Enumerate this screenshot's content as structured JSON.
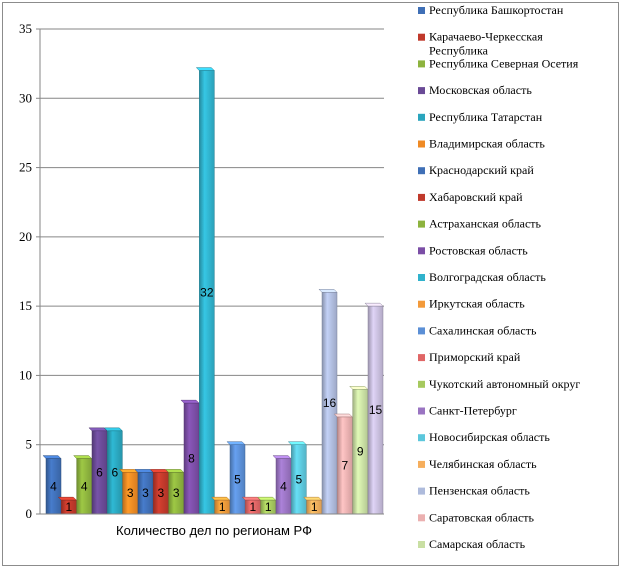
{
  "chart_data": {
    "type": "bar",
    "xlabel": "Количество дел по регионам РФ",
    "categories": [
      "Количество дел по регионам РФ"
    ],
    "ylim": [
      0,
      35
    ],
    "yticks": [
      0,
      5,
      10,
      15,
      20,
      25,
      30,
      35
    ],
    "grid": true,
    "legend_position": "right",
    "series": [
      {
        "name": "Республика Башкортостан",
        "values": [
          4
        ],
        "color": "#3f6fb6"
      },
      {
        "name": "Карачаево-Черкесская Республика",
        "values": [
          1
        ],
        "color": "#c0392b"
      },
      {
        "name": "Республика Северная Осетия",
        "values": [
          4
        ],
        "color": "#8db33e"
      },
      {
        "name": "Московская область",
        "values": [
          6
        ],
        "color": "#6a4a96"
      },
      {
        "name": "Республика Татарстан",
        "values": [
          6
        ],
        "color": "#2aa5bd"
      },
      {
        "name": "Владимирская область",
        "values": [
          3
        ],
        "color": "#ef8a24"
      },
      {
        "name": "Краснодарский край",
        "values": [
          3
        ],
        "color": "#3f6fb6"
      },
      {
        "name": "Хабаровский край",
        "values": [
          3
        ],
        "color": "#c0392b"
      },
      {
        "name": "Астраханская область",
        "values": [
          3
        ],
        "color": "#8db33e"
      },
      {
        "name": "Ростовская область",
        "values": [
          8
        ],
        "color": "#7b4ea6"
      },
      {
        "name": "Волгоградская область",
        "values": [
          32
        ],
        "color": "#30b2cc"
      },
      {
        "name": "Иркутская область",
        "values": [
          1
        ],
        "color": "#f39a3a"
      },
      {
        "name": "Сахалинская область",
        "values": [
          5
        ],
        "color": "#5b8fd6"
      },
      {
        "name": "Приморский край",
        "values": [
          1
        ],
        "color": "#e06666"
      },
      {
        "name": "Чукотский автономный округ",
        "values": [
          1
        ],
        "color": "#a6c95e"
      },
      {
        "name": "Санкт-Петербург",
        "values": [
          4
        ],
        "color": "#9a74c2"
      },
      {
        "name": "Новосибирская область",
        "values": [
          5
        ],
        "color": "#5cc7dc"
      },
      {
        "name": "Челябинская область",
        "values": [
          1
        ],
        "color": "#f6ae5c"
      },
      {
        "name": "Пензенская область",
        "values": [
          16
        ],
        "color": "#aebbdc"
      },
      {
        "name": "Саратовская область",
        "values": [
          7
        ],
        "color": "#ebb0b0"
      },
      {
        "name": "Самарская область",
        "values": [
          9
        ],
        "color": "#c9dfa3"
      },
      {
        "name": "",
        "values": [
          15
        ],
        "color": "#c7bddc"
      }
    ]
  }
}
